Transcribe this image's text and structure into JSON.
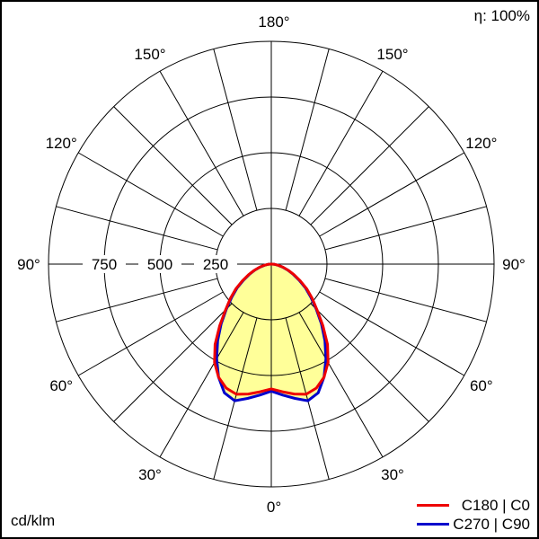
{
  "chart_data": {
    "type": "polar",
    "title": "",
    "efficiency_label": "η: 100%",
    "unit_label": "cd/klm",
    "radial_ticks": [
      250,
      500,
      750,
      1000
    ],
    "radial_tick_labels": [
      "250",
      "500",
      "750"
    ],
    "r_max": 1000,
    "angle_ticks": [
      0,
      30,
      60,
      90,
      120,
      150,
      180
    ],
    "angle_tick_labels": [
      "0°",
      "30°",
      "60°",
      "90°",
      "120°",
      "150°",
      "180°"
    ],
    "grid_angle_step": 15,
    "fill_color": "#FFFF99",
    "angles": [
      0,
      5,
      10,
      15,
      20,
      25,
      30,
      35,
      40,
      45,
      50,
      55,
      60,
      65,
      70,
      75,
      80,
      85,
      90
    ],
    "series": [
      {
        "name": "C180 | C0",
        "color": "#EE0000",
        "values": [
          560,
          575,
          592,
          605,
          592,
          560,
          510,
          440,
          360,
          290,
          240,
          195,
          150,
          112,
          82,
          55,
          33,
          16,
          4
        ]
      },
      {
        "name": "C270 | C90",
        "color": "#0000CC",
        "values": [
          570,
          590,
          612,
          635,
          615,
          560,
          490,
          420,
          350,
          285,
          232,
          188,
          145,
          108,
          78,
          52,
          31,
          15,
          4
        ]
      }
    ]
  }
}
